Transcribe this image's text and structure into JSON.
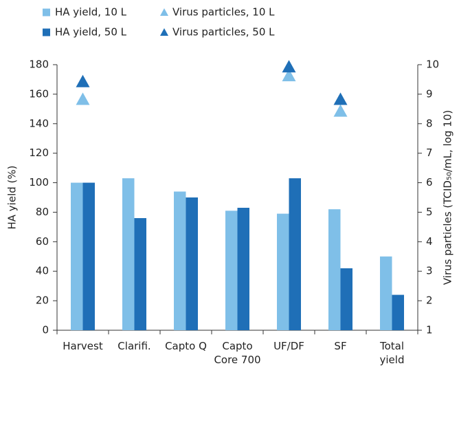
{
  "chart_data": {
    "type": "bar",
    "categories": [
      "Harvest",
      "Clarifi.",
      "Capto Q",
      "Capto\nCore 700",
      "UF/DF",
      "SF",
      "Total\nyield"
    ],
    "series": [
      {
        "name": "HA yield, 10 L",
        "color": "#7fbfe8",
        "type": "bar",
        "axis": "y",
        "values": [
          100,
          103,
          94,
          81,
          79,
          82,
          50
        ]
      },
      {
        "name": "HA yield, 50 L",
        "color": "#1f6fb7",
        "type": "bar",
        "axis": "y",
        "values": [
          100,
          76,
          90,
          83,
          103,
          42,
          24
        ]
      },
      {
        "name": "Virus particles, 10 L",
        "color": "#7fbfe8",
        "type": "scatter",
        "axis": "y2",
        "values": [
          8.8,
          null,
          null,
          null,
          9.6,
          8.4,
          null
        ]
      },
      {
        "name": "Virus particles, 50 L",
        "color": "#1f6fb7",
        "type": "scatter",
        "axis": "y2",
        "values": [
          9.4,
          null,
          null,
          null,
          9.9,
          8.8,
          null
        ]
      }
    ],
    "ylabel": "HA yield (%)",
    "y2label": "Virus particles (TCID₅₀/mL, log 10)",
    "ylim": [
      0,
      180
    ],
    "yticks": [
      0,
      20,
      40,
      60,
      80,
      100,
      120,
      140,
      160,
      180
    ],
    "y2lim": [
      1,
      10
    ],
    "y2ticks": [
      1,
      2,
      3,
      4,
      5,
      6,
      7,
      8,
      9,
      10
    ],
    "legend": "top-left"
  }
}
